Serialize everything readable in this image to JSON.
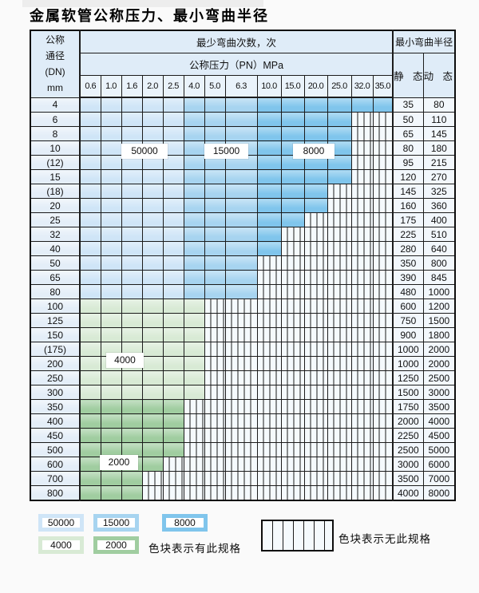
{
  "title": "金属软管公称压力、最小弯曲半径",
  "table": {
    "header": {
      "dn_label_lines": [
        "公称",
        "通径",
        "(DN)",
        "mm"
      ],
      "cycles_header": "最少弯曲次数，次",
      "radius_header": "最小弯曲半径",
      "pressure_header": "公称压力（PN）MPa",
      "pressure_columns": [
        "0.6",
        "1.0",
        "1.6",
        "2.0",
        "2.5",
        "4.0",
        "5.0",
        "6.3",
        "10.0",
        "15.0",
        "20.0",
        "25.0",
        "32.0",
        "35.0"
      ],
      "static_label": "静 态",
      "dynamic_label": "动 态"
    },
    "rows": [
      {
        "dn": "4",
        "colored_through": "35.0",
        "palette": "blue",
        "static": "35",
        "dynamic": "80"
      },
      {
        "dn": "6",
        "colored_through": "25.0",
        "palette": "blue",
        "static": "50",
        "dynamic": "110"
      },
      {
        "dn": "8",
        "colored_through": "25.0",
        "palette": "blue",
        "static": "65",
        "dynamic": "145"
      },
      {
        "dn": "10",
        "colored_through": "25.0",
        "palette": "blue",
        "static": "80",
        "dynamic": "180"
      },
      {
        "dn": "(12)",
        "colored_through": "25.0",
        "palette": "blue",
        "static": "95",
        "dynamic": "215"
      },
      {
        "dn": "15",
        "colored_through": "25.0",
        "palette": "blue",
        "static": "120",
        "dynamic": "270"
      },
      {
        "dn": "(18)",
        "colored_through": "20.0",
        "palette": "blue",
        "static": "145",
        "dynamic": "325"
      },
      {
        "dn": "20",
        "colored_through": "20.0",
        "palette": "blue",
        "static": "160",
        "dynamic": "360"
      },
      {
        "dn": "25",
        "colored_through": "15.0",
        "palette": "blue",
        "static": "175",
        "dynamic": "400"
      },
      {
        "dn": "32",
        "colored_through": "10.0",
        "palette": "blue",
        "static": "225",
        "dynamic": "510"
      },
      {
        "dn": "40",
        "colored_through": "10.0",
        "palette": "blue",
        "static": "280",
        "dynamic": "640"
      },
      {
        "dn": "50",
        "colored_through": "6.3",
        "palette": "blue",
        "static": "350",
        "dynamic": "800"
      },
      {
        "dn": "65",
        "colored_through": "6.3",
        "palette": "blue",
        "static": "390",
        "dynamic": "845"
      },
      {
        "dn": "80",
        "colored_through": "6.3",
        "palette": "blue",
        "static": "480",
        "dynamic": "1000"
      },
      {
        "dn": "100",
        "colored_through": "4.0",
        "palette": "green4000",
        "static": "600",
        "dynamic": "1200"
      },
      {
        "dn": "125",
        "colored_through": "4.0",
        "palette": "green4000",
        "static": "750",
        "dynamic": "1500"
      },
      {
        "dn": "150",
        "colored_through": "4.0",
        "palette": "green4000",
        "static": "900",
        "dynamic": "1800"
      },
      {
        "dn": "(175)",
        "colored_through": "4.0",
        "palette": "green4000",
        "static": "1000",
        "dynamic": "2000"
      },
      {
        "dn": "200",
        "colored_through": "4.0",
        "palette": "green4000",
        "static": "1000",
        "dynamic": "2000"
      },
      {
        "dn": "250",
        "colored_through": "4.0",
        "palette": "green4000",
        "static": "1250",
        "dynamic": "2500"
      },
      {
        "dn": "300",
        "colored_through": "4.0",
        "palette": "green4000",
        "static": "1500",
        "dynamic": "3000"
      },
      {
        "dn": "350",
        "colored_through": "2.5",
        "palette": "green2000",
        "static": "1750",
        "dynamic": "3500"
      },
      {
        "dn": "400",
        "colored_through": "2.5",
        "palette": "green2000",
        "static": "2000",
        "dynamic": "4000"
      },
      {
        "dn": "450",
        "colored_through": "2.5",
        "palette": "green2000",
        "static": "2250",
        "dynamic": "4500"
      },
      {
        "dn": "500",
        "colored_through": "2.5",
        "palette": "green2000",
        "static": "2500",
        "dynamic": "5000"
      },
      {
        "dn": "600",
        "colored_through": "2.0",
        "palette": "green2000",
        "static": "3000",
        "dynamic": "6000"
      },
      {
        "dn": "700",
        "colored_through": "1.6",
        "palette": "green2000",
        "static": "3500",
        "dynamic": "7000"
      },
      {
        "dn": "800",
        "colored_through": "1.6",
        "palette": "green2000",
        "static": "4000",
        "dynamic": "8000"
      }
    ]
  },
  "cycle_labels": {
    "c50000": "50000",
    "c15000": "15000",
    "c8000": "8000",
    "c4000": "4000",
    "c2000": "2000"
  },
  "color_coding": {
    "blue_light": {
      "cycles": "50000",
      "pn_range": [
        "0.6",
        "2.5"
      ]
    },
    "blue_mid": {
      "cycles": "15000",
      "pn_range": [
        "4.0",
        "6.3"
      ]
    },
    "blue_dark": {
      "cycles": "8000",
      "pn_range": [
        "10.0",
        "35.0"
      ]
    }
  },
  "legend": {
    "swatches": [
      {
        "label": "50000"
      },
      {
        "label": "15000"
      },
      {
        "label": "8000"
      },
      {
        "label": "4000"
      },
      {
        "label": "2000"
      }
    ],
    "has_spec_note": "色块表示有此规格",
    "no_spec_note": "色块表示无此规格"
  },
  "colors": {
    "cycles_50000": "#cfe5f7",
    "cycles_15000": "#a7d4f0",
    "cycles_8000": "#80c5ec",
    "cycles_4000": "#d8ead5",
    "cycles_2000": "#a0cda0",
    "header_bg": "#dfecf8",
    "subheader_bg": "#eaf3fb",
    "label_col_bg": "#e4eef8",
    "value_col_bg": "#f2f7fc",
    "stripe_bg": "#f5fafd",
    "grid_line": "#1c1c1c"
  }
}
